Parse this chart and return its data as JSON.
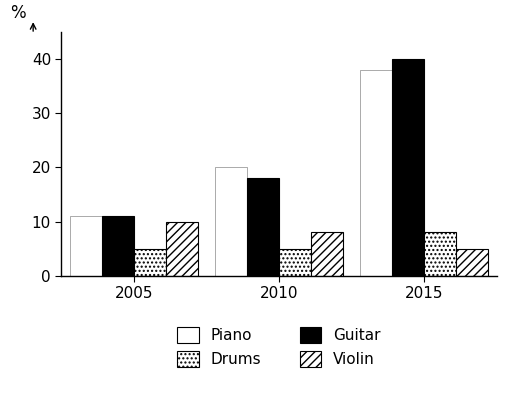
{
  "years": [
    "2005",
    "2010",
    "2015"
  ],
  "instruments": [
    "Piano",
    "Guitar",
    "Drums",
    "Violin"
  ],
  "values": {
    "Piano": [
      11,
      20,
      38
    ],
    "Guitar": [
      11,
      18,
      40
    ],
    "Drums": [
      5,
      5,
      8
    ],
    "Violin": [
      10,
      8,
      5
    ]
  },
  "bar_colors": {
    "Piano": "white",
    "Guitar": "black",
    "Drums": "white",
    "Violin": "white"
  },
  "hatches": {
    "Piano": "",
    "Guitar": "",
    "Drums": "....",
    "Violin": "////"
  },
  "edgecolors": {
    "Piano": "#888888",
    "Guitar": "black",
    "Drums": "black",
    "Violin": "black"
  },
  "ylabel": "%",
  "ylim": [
    0,
    45
  ],
  "yticks": [
    0,
    10,
    20,
    30,
    40
  ],
  "bar_width": 0.22,
  "background_color": "#ffffff"
}
